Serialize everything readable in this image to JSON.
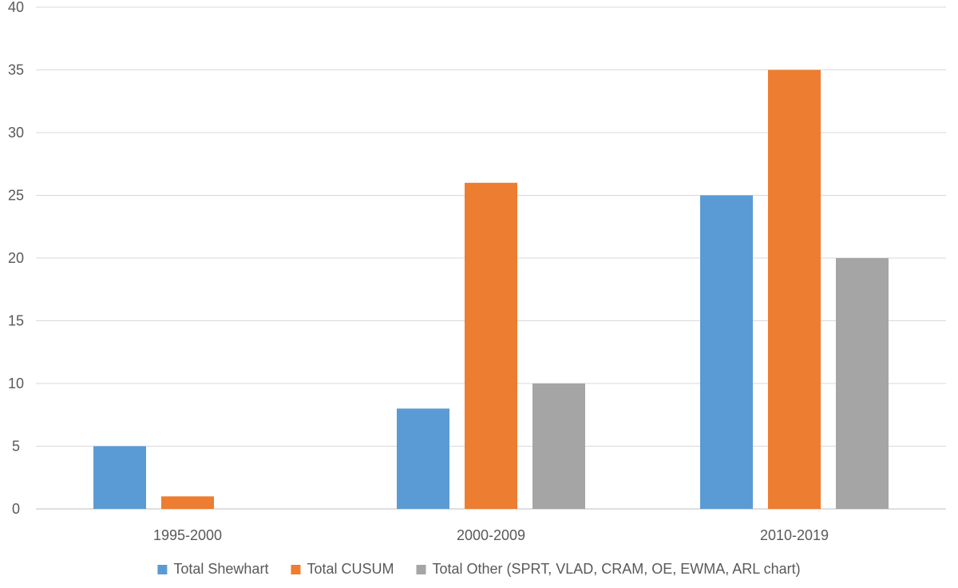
{
  "chart_data": {
    "type": "bar",
    "title": "",
    "xlabel": "",
    "ylabel": "",
    "categories": [
      "1995-2000",
      "2000-2009",
      "2010-2019"
    ],
    "series": [
      {
        "name": "Total Shewhart",
        "color": "#5B9BD5",
        "values": [
          5,
          8,
          25
        ]
      },
      {
        "name": "Total CUSUM",
        "color": "#ED7D31",
        "values": [
          1,
          26,
          35
        ]
      },
      {
        "name": "Total Other (SPRT, VLAD, CRAM, OE, EWMA, ARL chart)",
        "color": "#A5A5A5",
        "values": [
          0,
          10,
          20
        ]
      }
    ],
    "ylim": [
      0,
      40
    ],
    "yticks": [
      0,
      5,
      10,
      15,
      20,
      25,
      30,
      35,
      40
    ],
    "grid": true,
    "legend_position": "bottom"
  }
}
